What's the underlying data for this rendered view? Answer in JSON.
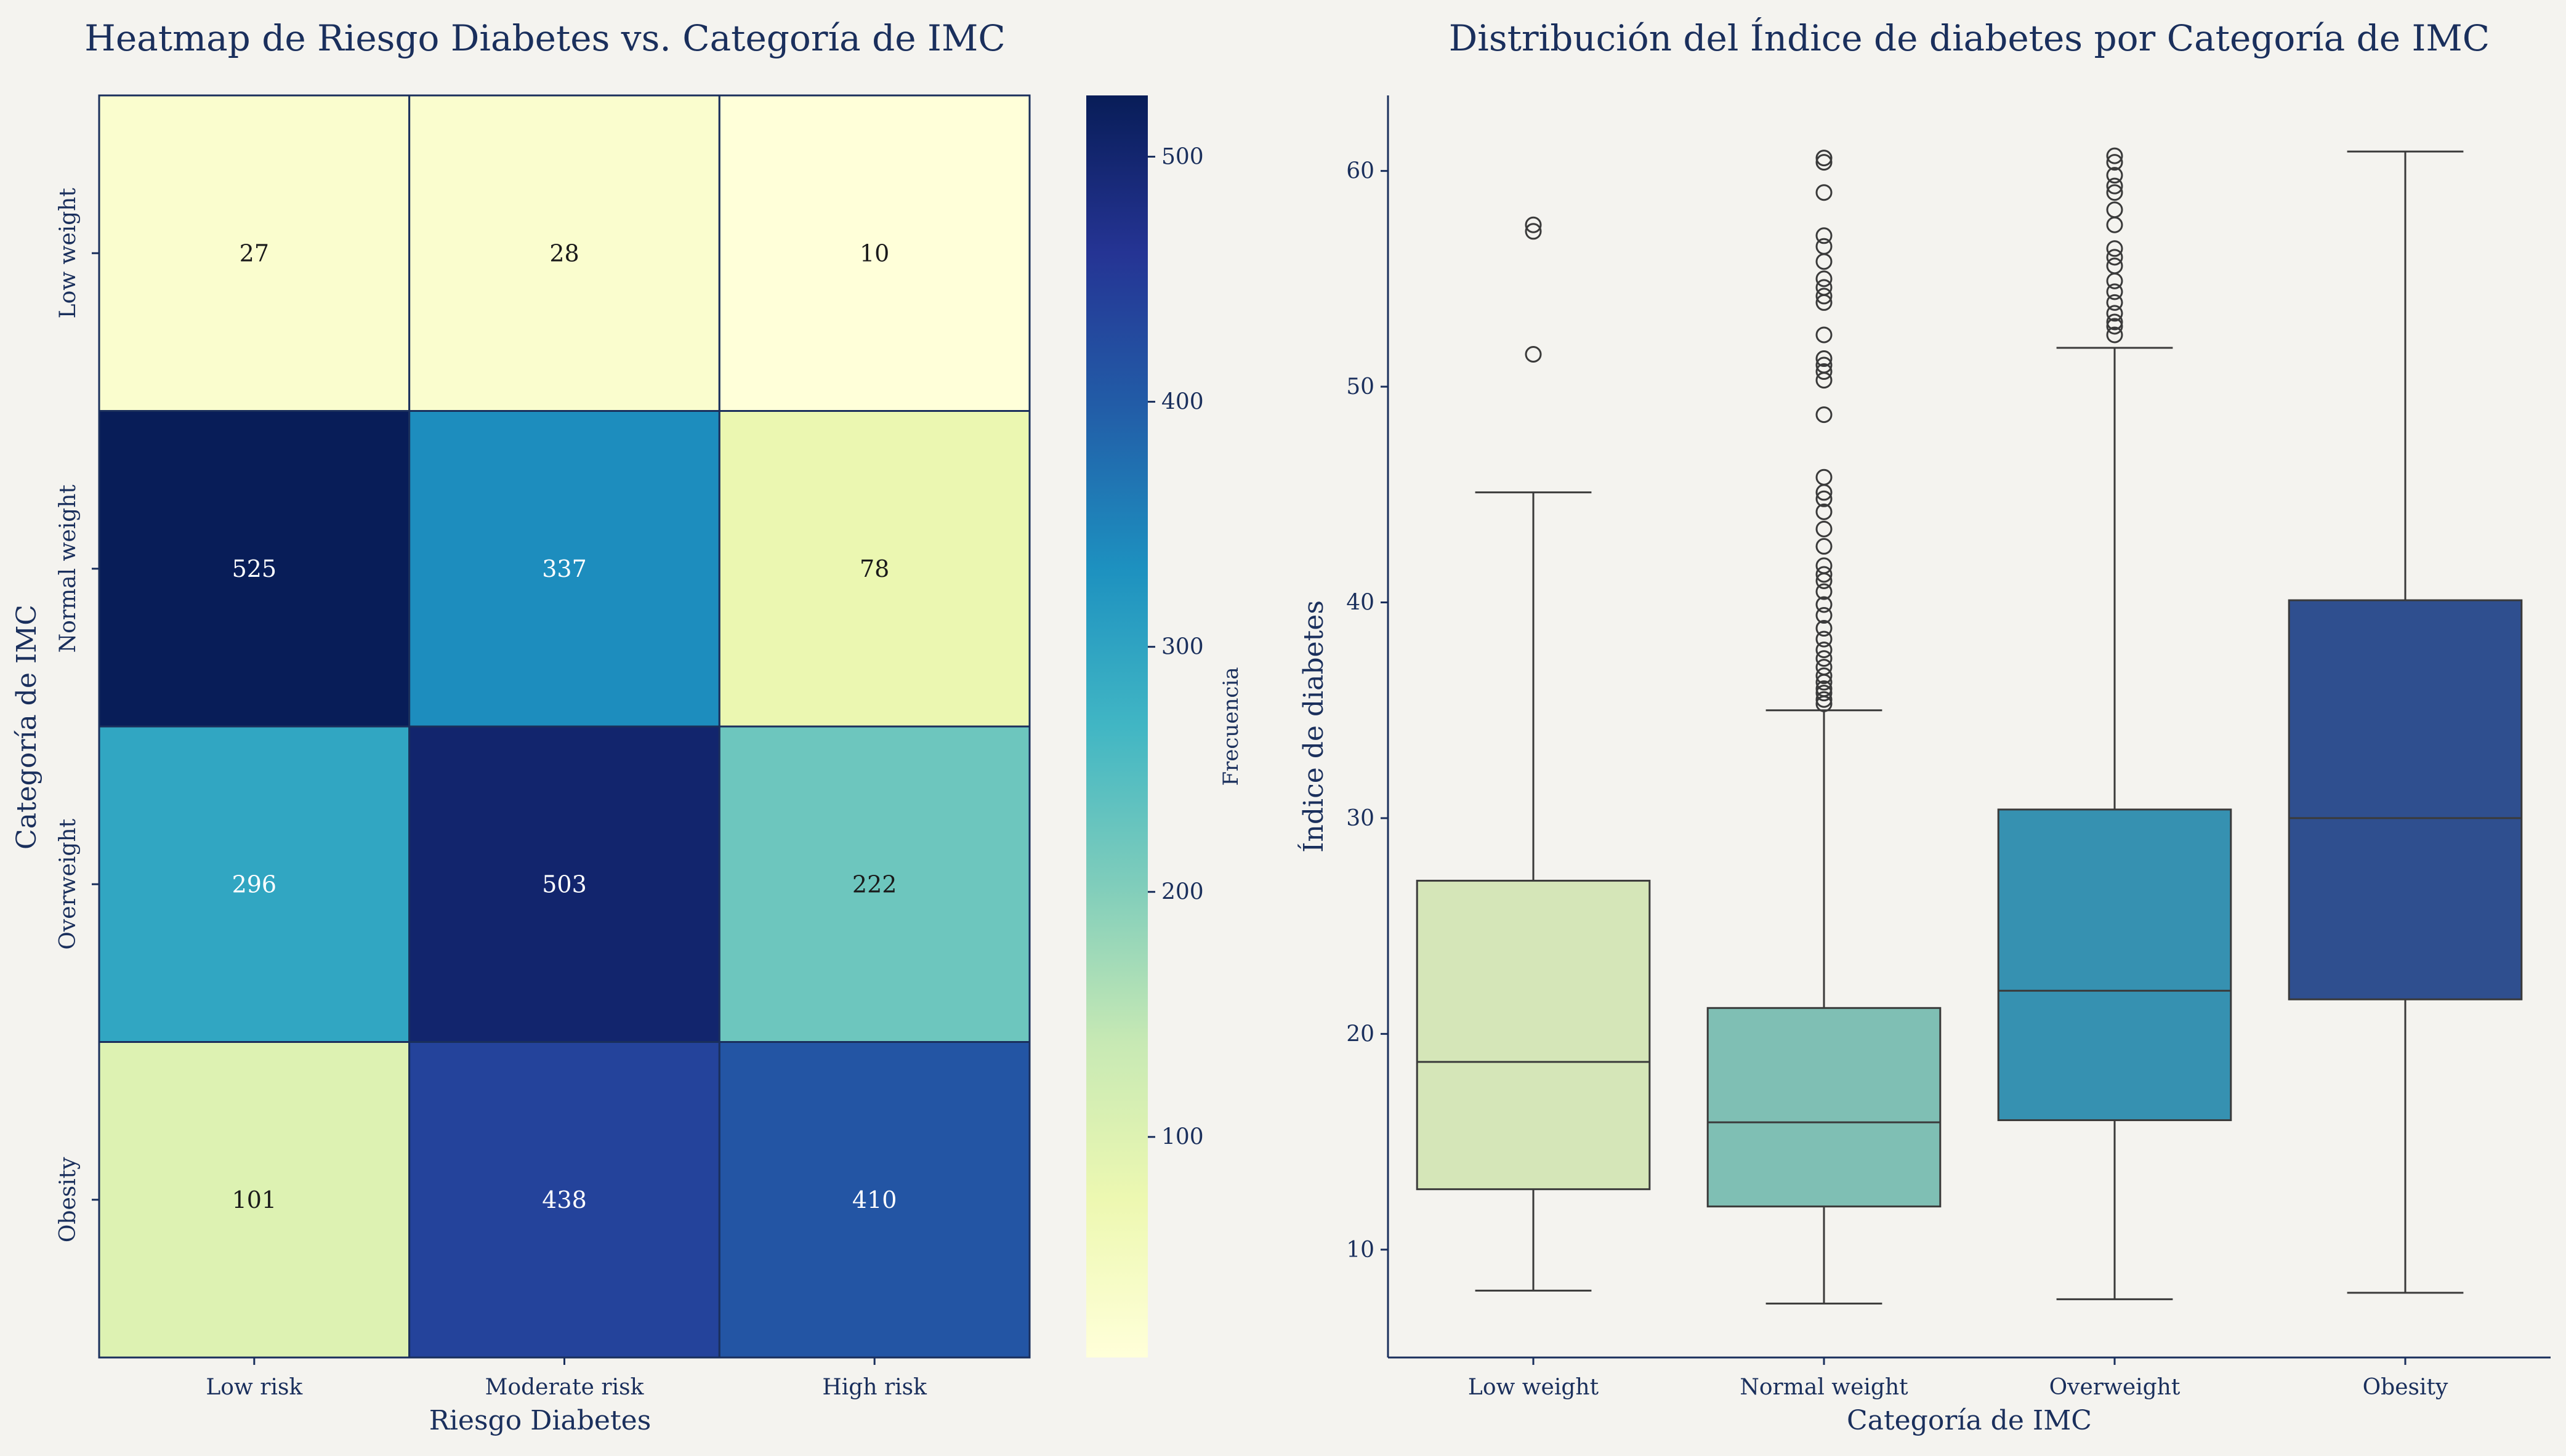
{
  "chart_data": [
    {
      "type": "heatmap",
      "title": "Heatmap de Riesgo Diabetes vs. Categoría de IMC",
      "xlabel": "Riesgo Diabetes",
      "ylabel": "Categoría de IMC",
      "x_categories": [
        "Low risk",
        "Moderate risk",
        "High risk"
      ],
      "y_categories": [
        "Low weight",
        "Normal weight",
        "Overweight",
        "Obesity"
      ],
      "values": [
        [
          27,
          28,
          10
        ],
        [
          525,
          337,
          78
        ],
        [
          296,
          503,
          222
        ],
        [
          101,
          438,
          410
        ]
      ],
      "colorbar": {
        "label": "Frecuencia",
        "range": [
          10,
          525
        ],
        "ticks": [
          100,
          200,
          300,
          400,
          500
        ],
        "colormap": "YlGnBu"
      },
      "annotated": true
    },
    {
      "type": "box",
      "title": "Distribución del Índice de diabetes por Categoría de IMC",
      "xlabel": "Categoría de IMC",
      "ylabel": "Índice de diabetes",
      "ylim": [
        5,
        63.5
      ],
      "yticks": [
        10,
        20,
        30,
        40,
        50,
        60
      ],
      "grid": false,
      "categories": [
        "Low weight",
        "Normal weight",
        "Overweight",
        "Obesity"
      ],
      "boxes": [
        {
          "category": "Low weight",
          "whisker_low": 8.1,
          "q1": 12.8,
          "median": 18.7,
          "q3": 27.1,
          "whisker_high": 45.1,
          "outliers": [
            51.5,
            57.2,
            57.5
          ],
          "color": "#d5e6b8"
        },
        {
          "category": "Normal weight",
          "whisker_low": 7.5,
          "q1": 12.0,
          "median": 15.9,
          "q3": 21.2,
          "whisker_high": 35.0,
          "outliers": [
            35.3,
            35.5,
            35.8,
            36.0,
            36.3,
            36.6,
            37.0,
            37.4,
            37.8,
            38.3,
            38.8,
            39.4,
            39.9,
            40.5,
            41.0,
            41.3,
            41.7,
            42.6,
            43.4,
            44.2,
            44.8,
            45.1,
            45.8,
            48.7,
            50.3,
            50.7,
            51.0,
            51.3,
            52.4,
            53.9,
            54.2,
            54.6,
            55.0,
            55.8,
            56.5,
            57.0,
            59.0,
            60.4,
            60.6
          ],
          "color": "#7fbfb4"
        },
        {
          "category": "Overweight",
          "whisker_low": 7.7,
          "q1": 16.0,
          "median": 22.0,
          "q3": 30.4,
          "whisker_high": 51.8,
          "outliers": [
            52.4,
            52.8,
            53.0,
            53.4,
            53.9,
            54.4,
            54.9,
            55.6,
            56.0,
            56.4,
            57.5,
            58.2,
            59.0,
            59.3,
            59.8,
            60.4,
            60.7
          ],
          "color": "#3691b1"
        },
        {
          "category": "Obesity",
          "whisker_low": 8.0,
          "q1": 21.6,
          "median": 30.0,
          "q3": 40.1,
          "whisker_high": 60.9,
          "outliers": [],
          "color": "#2f4f8f"
        }
      ]
    }
  ]
}
